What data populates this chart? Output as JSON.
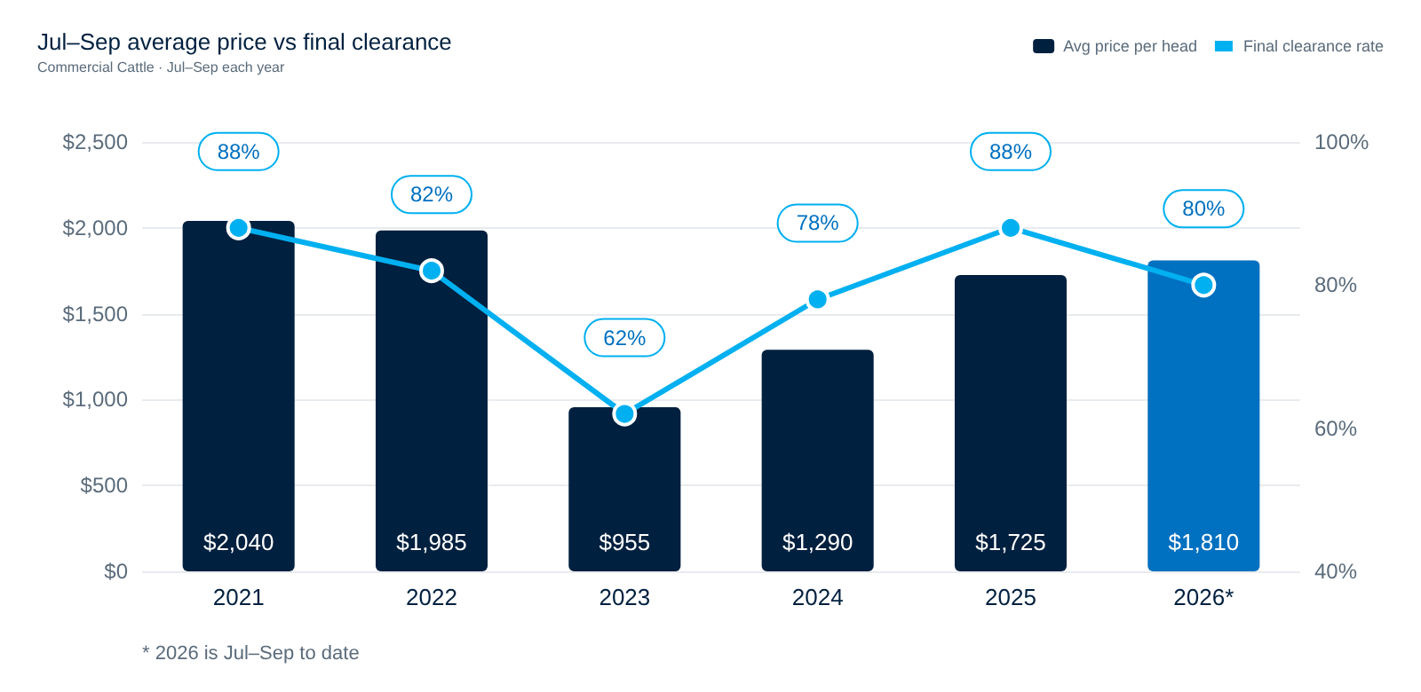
{
  "chart_data": {
    "type": "bar",
    "title": "Jul–Sep average price vs final clearance",
    "subtitle": "Commercial Cattle · Jul–Sep each year",
    "categories": [
      "2021",
      "2022",
      "2023",
      "2024",
      "2025",
      "2026*"
    ],
    "series": [
      {
        "name": "Avg price per head",
        "color": "#00203f",
        "colors": [
          "#00203f",
          "#00203f",
          "#00203f",
          "#00203f",
          "#00203f",
          "#0070c0"
        ],
        "values": [
          2040,
          1985,
          955,
          1290,
          1725,
          1810
        ],
        "value_labels": [
          "$2,040",
          "$1,985",
          "$955",
          "$1,290",
          "$1,725",
          "$1,810"
        ]
      },
      {
        "name": "Final clearance rate",
        "type": "line",
        "axis": "y2",
        "color": "#00b0f0",
        "values": [
          88,
          82,
          62,
          78,
          88,
          80
        ],
        "value_labels": [
          "88%",
          "82%",
          "62%",
          "78%",
          "88%",
          "80%"
        ],
        "marker": "circle"
      }
    ],
    "ylim": [
      0,
      2500
    ],
    "yticks": [
      {
        "value": 0,
        "label": "$0"
      },
      {
        "value": 500,
        "label": "$500"
      },
      {
        "value": 1000,
        "label": "$1,000"
      },
      {
        "value": 1500,
        "label": "$1,500"
      },
      {
        "value": 2000,
        "label": "$2,000"
      },
      {
        "value": 2500,
        "label": "$2,500"
      }
    ],
    "y2lim": [
      40,
      100
    ],
    "y2ticks": [
      {
        "value": 40,
        "label": "40%"
      },
      {
        "value": 60,
        "label": "60%"
      },
      {
        "value": 80,
        "label": "80%"
      },
      {
        "value": 100,
        "label": "100%"
      }
    ],
    "grid": "y",
    "legend": "top right",
    "annotations": [
      "* 2026 is Jul–Sep to date"
    ]
  }
}
